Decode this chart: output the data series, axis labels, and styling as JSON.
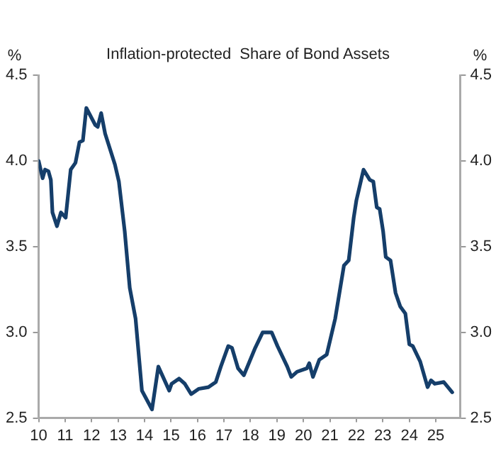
{
  "chart_data": {
    "type": "line",
    "title": "Inflation-protected  Share of Bond Assets",
    "ylabel": "%",
    "y2label": "%",
    "xlim": [
      2010,
      2025.92
    ],
    "xticks": [
      {
        "value": 2010,
        "label": "10"
      },
      {
        "value": 2011,
        "label": "11"
      },
      {
        "value": 2012,
        "label": "12"
      },
      {
        "value": 2013,
        "label": "13"
      },
      {
        "value": 2014,
        "label": "14"
      },
      {
        "value": 2015,
        "label": "15"
      },
      {
        "value": 2016,
        "label": "16"
      },
      {
        "value": 2017,
        "label": "17"
      },
      {
        "value": 2018,
        "label": "18"
      },
      {
        "value": 2019,
        "label": "19"
      },
      {
        "value": 2020,
        "label": "20"
      },
      {
        "value": 2021,
        "label": "21"
      },
      {
        "value": 2022,
        "label": "22"
      },
      {
        "value": 2023,
        "label": "23"
      },
      {
        "value": 2024,
        "label": "24"
      },
      {
        "value": 2025,
        "label": "25"
      }
    ],
    "ylim": [
      2.5,
      4.5
    ],
    "yticks": [
      {
        "value": 2.5,
        "label": "2.5"
      },
      {
        "value": 3,
        "label": "3.0"
      },
      {
        "value": 3.5,
        "label": "3.5"
      },
      {
        "value": 4,
        "label": "4.0"
      },
      {
        "value": 4.5,
        "label": "4.5"
      }
    ],
    "y2lim": [
      2.5,
      4.5
    ],
    "y2ticks": [
      {
        "value": 2.5,
        "label": "2.5"
      },
      {
        "value": 3,
        "label": "3.0"
      },
      {
        "value": 3.5,
        "label": "3.5"
      },
      {
        "value": 4,
        "label": "4.0"
      },
      {
        "value": 4.5,
        "label": "4.5"
      }
    ],
    "grid": false,
    "legend": false,
    "marker": "none",
    "line_style": "solid",
    "series": [
      {
        "color": "#153e6a",
        "x": [
          2010.0,
          2010.15,
          2010.24,
          2010.37,
          2010.46,
          2010.52,
          2010.69,
          2010.84,
          2011.02,
          2011.21,
          2011.39,
          2011.54,
          2011.67,
          2011.8,
          2012.14,
          2012.23,
          2012.36,
          2012.51,
          2012.88,
          2013.03,
          2013.25,
          2013.44,
          2013.66,
          2013.9,
          2014.28,
          2014.52,
          2014.93,
          2015.02,
          2015.3,
          2015.52,
          2015.76,
          2016.04,
          2016.41,
          2016.69,
          2016.88,
          2017.16,
          2017.3,
          2017.53,
          2017.75,
          2018.18,
          2018.46,
          2018.8,
          2019.02,
          2019.39,
          2019.54,
          2019.76,
          2020.13,
          2020.22,
          2020.36,
          2020.6,
          2020.88,
          2021.2,
          2021.53,
          2021.71,
          2021.9,
          2022.0,
          2022.27,
          2022.51,
          2022.64,
          2022.77,
          2022.88,
          2023.01,
          2023.11,
          2023.29,
          2023.48,
          2023.66,
          2023.85,
          2024.0,
          2024.13,
          2024.41,
          2024.69,
          2024.82,
          2024.96,
          2025.3,
          2025.62
        ],
        "values": [
          4.0,
          3.9,
          3.95,
          3.94,
          3.89,
          3.7,
          3.62,
          3.7,
          3.67,
          3.95,
          3.99,
          4.11,
          4.12,
          4.31,
          4.21,
          4.2,
          4.28,
          4.16,
          3.98,
          3.88,
          3.59,
          3.26,
          3.08,
          2.66,
          2.55,
          2.8,
          2.66,
          2.7,
          2.73,
          2.7,
          2.64,
          2.67,
          2.68,
          2.71,
          2.8,
          2.92,
          2.91,
          2.79,
          2.75,
          2.91,
          3.0,
          3.0,
          2.92,
          2.8,
          2.74,
          2.77,
          2.79,
          2.82,
          2.74,
          2.84,
          2.87,
          3.08,
          3.39,
          3.42,
          3.67,
          3.77,
          3.95,
          3.89,
          3.88,
          3.73,
          3.72,
          3.59,
          3.44,
          3.42,
          3.23,
          3.15,
          3.11,
          2.93,
          2.92,
          2.83,
          2.68,
          2.72,
          2.7,
          2.71,
          2.65
        ]
      }
    ]
  }
}
